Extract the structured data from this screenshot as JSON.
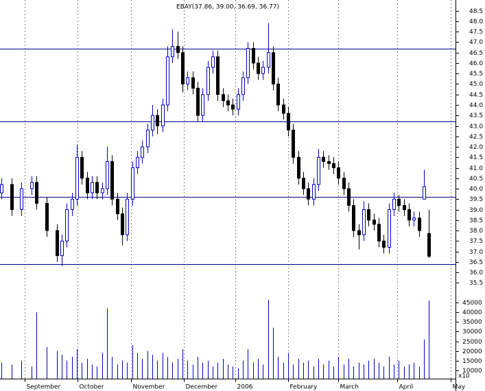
{
  "chart_data": {
    "type": "candlestick",
    "title": "EBAY(37.86, 39.00, 36.69, 36.77)",
    "x": [
      0,
      4,
      8,
      12,
      14,
      18,
      22,
      24,
      26,
      28,
      30,
      32,
      34,
      36,
      38,
      40,
      42,
      44,
      46,
      48,
      50,
      52,
      54,
      56,
      58,
      60,
      62,
      64,
      66,
      68,
      70,
      72,
      74,
      76,
      78,
      80,
      82,
      84,
      86,
      88,
      90,
      92,
      94,
      96,
      98,
      100,
      102,
      104,
      106,
      108,
      110,
      112,
      114,
      116,
      118,
      120,
      122,
      124,
      126,
      128,
      130,
      132,
      134,
      136,
      138,
      140,
      142,
      144,
      146,
      148,
      150,
      152,
      154,
      156,
      158,
      160,
      162,
      164,
      166,
      168,
      170
    ],
    "open": [
      39.8,
      40.2,
      39.0,
      40.0,
      40.3,
      39.3,
      38.0,
      36.8,
      37.5,
      39.0,
      39.5,
      41.5,
      40.5,
      39.8,
      40.3,
      39.8,
      40.0,
      41.3,
      39.5,
      38.8,
      37.8,
      39.5,
      41.0,
      41.5,
      42.0,
      42.8,
      43.5,
      43.0,
      44.0,
      46.3,
      46.8,
      46.5,
      45.0,
      45.3,
      44.8,
      43.5,
      44.5,
      45.8,
      46.3,
      44.5,
      44.2,
      44.0,
      43.8,
      44.5,
      45.3,
      46.7,
      46.0,
      45.5,
      45.8,
      46.5,
      45.0,
      44.0,
      43.6,
      42.8,
      41.5,
      40.5,
      40.0,
      39.5,
      40.2,
      41.5,
      41.3,
      41.2,
      41.0,
      40.5,
      40.0,
      39.2,
      38.0,
      37.8,
      39.0,
      38.5,
      38.3,
      37.5,
      37.2,
      39.0,
      39.5,
      39.2,
      39.0,
      38.5,
      38.6,
      39.5,
      37.86
    ],
    "high": [
      40.5,
      40.5,
      40.3,
      40.6,
      40.6,
      39.6,
      38.3,
      37.8,
      39.3,
      39.8,
      42.1,
      41.8,
      40.8,
      40.6,
      40.6,
      40.3,
      42.0,
      41.6,
      39.8,
      39.1,
      39.8,
      41.3,
      41.8,
      42.3,
      43.1,
      44.0,
      43.8,
      44.3,
      46.8,
      47.6,
      47.5,
      46.8,
      45.6,
      45.6,
      45.1,
      44.8,
      46.1,
      46.6,
      46.6,
      44.8,
      44.5,
      44.3,
      44.8,
      45.6,
      47.0,
      47.0,
      46.3,
      46.1,
      47.9,
      46.8,
      45.3,
      44.3,
      43.9,
      43.1,
      41.8,
      40.8,
      40.3,
      40.5,
      41.9,
      41.8,
      41.6,
      41.5,
      41.3,
      40.8,
      40.3,
      39.5,
      38.3,
      39.4,
      39.3,
      38.8,
      38.6,
      37.8,
      39.3,
      39.8,
      39.7,
      39.5,
      39.3,
      38.9,
      38.9,
      40.9,
      39.0
    ],
    "low": [
      39.5,
      38.7,
      38.7,
      39.7,
      39.0,
      37.7,
      36.5,
      36.3,
      37.2,
      38.7,
      39.2,
      40.2,
      39.5,
      39.5,
      39.5,
      39.5,
      39.7,
      39.2,
      38.5,
      37.3,
      37.5,
      39.2,
      40.7,
      41.2,
      41.7,
      42.5,
      42.6,
      42.7,
      43.7,
      46.0,
      46.2,
      44.6,
      44.7,
      44.5,
      43.2,
      43.2,
      44.2,
      45.5,
      44.2,
      43.9,
      43.7,
      43.5,
      43.5,
      44.2,
      45.0,
      45.7,
      45.2,
      45.2,
      45.5,
      44.7,
      43.7,
      43.3,
      42.5,
      41.2,
      40.2,
      39.7,
      39.2,
      39.2,
      39.9,
      41.0,
      40.9,
      40.7,
      40.2,
      39.7,
      38.9,
      37.7,
      37.1,
      37.5,
      38.2,
      38.0,
      37.2,
      36.9,
      36.9,
      38.7,
      38.9,
      38.7,
      38.2,
      38.2,
      37.7,
      39.5,
      36.69
    ],
    "close": [
      40.2,
      39.0,
      40.0,
      40.3,
      39.3,
      38.0,
      36.8,
      37.5,
      39.0,
      39.5,
      41.5,
      40.5,
      39.8,
      40.3,
      39.8,
      40.0,
      41.3,
      39.5,
      38.8,
      37.8,
      39.5,
      41.0,
      41.5,
      42.0,
      42.8,
      43.5,
      43.0,
      44.0,
      46.3,
      46.8,
      46.5,
      45.0,
      45.3,
      44.8,
      43.5,
      44.5,
      45.8,
      46.3,
      44.5,
      44.2,
      44.0,
      43.8,
      44.5,
      45.3,
      46.7,
      46.0,
      45.5,
      45.8,
      46.5,
      45.0,
      44.0,
      43.6,
      42.8,
      41.5,
      40.5,
      40.0,
      39.5,
      40.2,
      41.5,
      41.3,
      41.2,
      41.0,
      40.5,
      40.0,
      39.2,
      38.0,
      37.8,
      39.0,
      38.5,
      38.3,
      37.5,
      37.2,
      39.0,
      39.5,
      39.2,
      39.0,
      38.5,
      38.6,
      38.0,
      40.1,
      36.77
    ],
    "volume": [
      14000,
      13000,
      15000,
      12000,
      40000,
      22000,
      20000,
      18000,
      15000,
      17000,
      21000,
      14000,
      16000,
      13000,
      12000,
      19000,
      42000,
      17000,
      13000,
      15000,
      14000,
      23000,
      19000,
      16000,
      20000,
      18000,
      15000,
      19000,
      17000,
      14000,
      16000,
      21000,
      15000,
      13000,
      17000,
      14000,
      15000,
      12000,
      14000,
      16000,
      13000,
      12000,
      11000,
      15000,
      21000,
      14000,
      16000,
      13000,
      46500,
      32000,
      17000,
      14000,
      19000,
      13000,
      16000,
      14000,
      15000,
      12000,
      16000,
      13000,
      15000,
      12000,
      17000,
      13000,
      16000,
      12000,
      14000,
      13000,
      15000,
      16000,
      14000,
      12000,
      17000,
      13000,
      15000,
      12000,
      13000,
      14000,
      12000,
      26000,
      46000
    ],
    "xlim": [
      -0.5,
      180
    ],
    "xticks": [
      {
        "value": 9.3,
        "label": "September"
      },
      {
        "value": 30.2,
        "label": "October"
      },
      {
        "value": 51.5,
        "label": "November"
      },
      {
        "value": 72.5,
        "label": "December"
      },
      {
        "value": 93,
        "label": "2006"
      },
      {
        "value": 114,
        "label": "February"
      },
      {
        "value": 134,
        "label": "March"
      },
      {
        "value": 157.5,
        "label": "April"
      },
      {
        "value": 178.7,
        "label": "May"
      }
    ],
    "ylim": [
      35.25,
      48.85
    ],
    "yticks": [
      35.5,
      {
        "value": 36,
        "label": "36.0"
      },
      36.5,
      {
        "value": 37,
        "label": "37.0"
      },
      37.5,
      {
        "value": 38,
        "label": "38.0"
      },
      38.5,
      {
        "value": 39,
        "label": "39.0"
      },
      39.5,
      {
        "value": 40,
        "label": "40.0"
      },
      40.5,
      {
        "value": 41,
        "label": "41.0"
      },
      41.5,
      {
        "value": 42,
        "label": "42.0"
      },
      42.5,
      {
        "value": 43,
        "label": "43.0"
      },
      43.5,
      {
        "value": 44,
        "label": "44.0"
      },
      44.5,
      {
        "value": 45,
        "label": "45.0"
      },
      45.5,
      {
        "value": 46,
        "label": "46.0"
      },
      46.5,
      {
        "value": 47,
        "label": "47.0"
      },
      47.5,
      {
        "value": 48,
        "label": "48.0"
      },
      48.5
    ],
    "hlines": [
      46.7,
      43.2,
      39.6,
      36.4
    ],
    "volume_ylim": [
      5700,
      47000
    ],
    "volume_yticks": [
      10000,
      15000,
      20000,
      25000,
      30000,
      35000,
      40000,
      45000
    ],
    "volume_scale_label": "x10",
    "up_color": "#0000c8",
    "down_color": "#000000",
    "line_color": "#00008c",
    "volume_color": "#0000c8"
  }
}
